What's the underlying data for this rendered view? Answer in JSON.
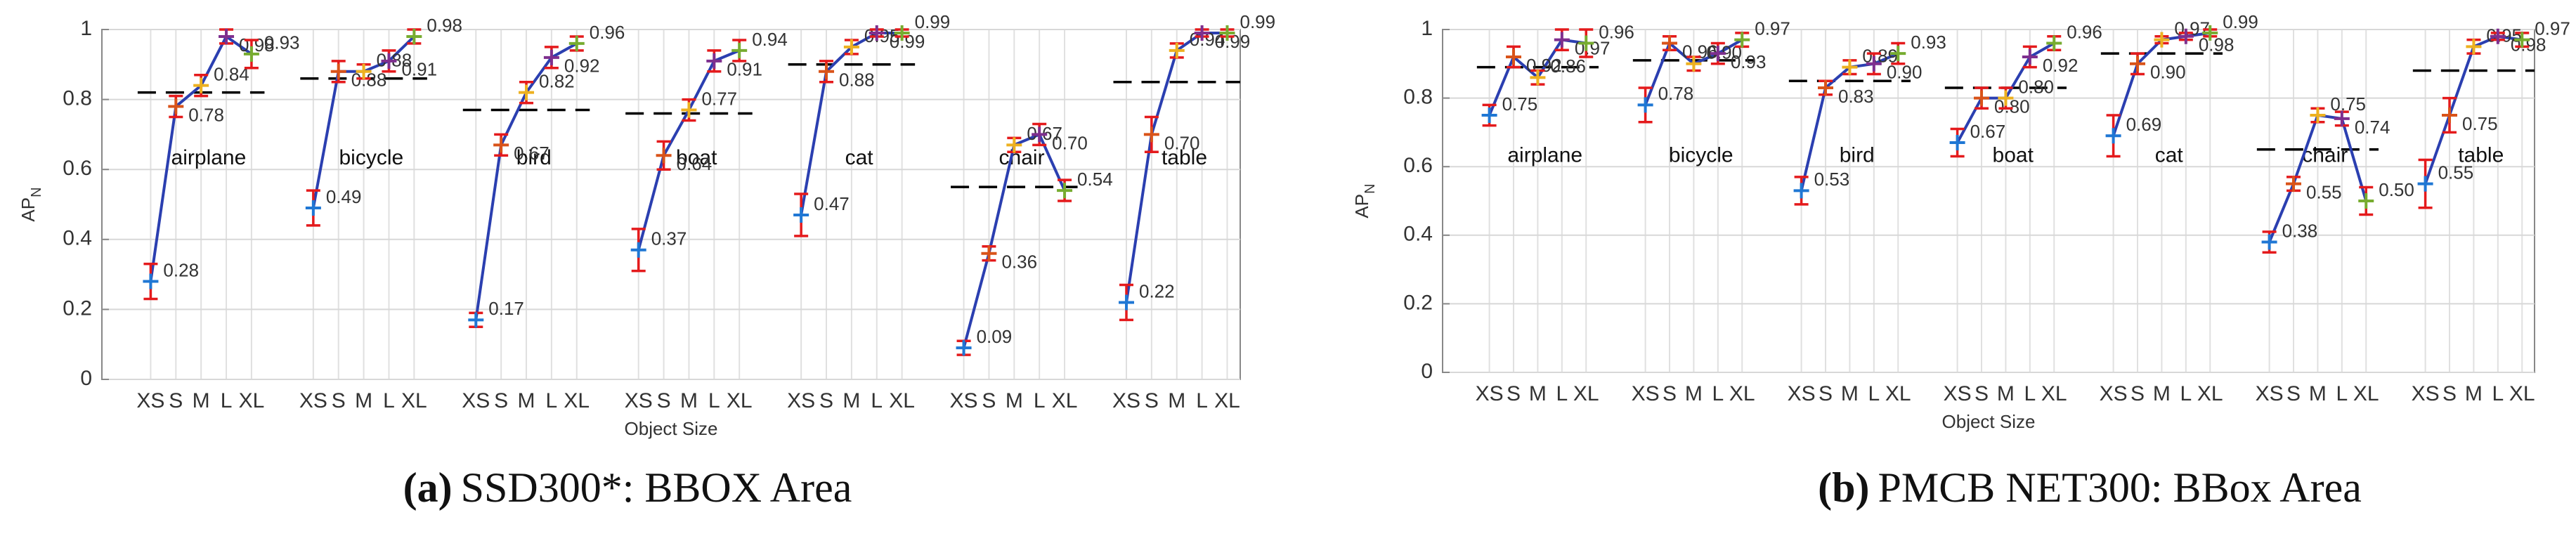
{
  "chart_data": [
    {
      "type": "line",
      "label": "(a)",
      "caption": "SSD300*: BBOX Area",
      "x_label": "Object Size",
      "y_label": "AP",
      "y_label_subscript": "N",
      "sizes": [
        "XS",
        "S",
        "M",
        "L",
        "XL"
      ],
      "ylim": [
        0,
        1
      ],
      "yticks": [
        0,
        0.2,
        0.4,
        0.6,
        0.8,
        1
      ],
      "grid": true,
      "line_color": "#2b3fb0",
      "error_color": "#e41a1c",
      "overall_color": "#000000",
      "marker_colors": [
        "#1f77d4",
        "#d95319",
        "#edb120",
        "#7e2f8e",
        "#77ac30"
      ],
      "series": [
        {
          "name": "airplane",
          "values": [
            0.28,
            0.78,
            0.84,
            0.98,
            0.93
          ],
          "value_labels": [
            "0.28",
            "0.78",
            "0.84",
            "0.98",
            "0.93"
          ],
          "errors": [
            0.05,
            0.03,
            0.03,
            0.02,
            0.04
          ],
          "overall": 0.82
        },
        {
          "name": "bicycle",
          "values": [
            0.49,
            0.88,
            0.88,
            0.91,
            0.98
          ],
          "value_labels": [
            "0.49",
            "0.88",
            "0.88",
            "0.91",
            "0.98"
          ],
          "errors": [
            0.05,
            0.03,
            0.02,
            0.03,
            0.02
          ],
          "overall": 0.86
        },
        {
          "name": "bird",
          "values": [
            0.17,
            0.67,
            0.82,
            0.92,
            0.96
          ],
          "value_labels": [
            "0.17",
            "0.67",
            "0.82",
            "0.92",
            "0.96"
          ],
          "errors": [
            0.02,
            0.03,
            0.03,
            0.03,
            0.02
          ],
          "overall": 0.77
        },
        {
          "name": "boat",
          "values": [
            0.37,
            0.64,
            0.77,
            0.91,
            0.94
          ],
          "value_labels": [
            "0.37",
            "0.64",
            "0.77",
            "0.91",
            "0.94"
          ],
          "errors": [
            0.06,
            0.04,
            0.03,
            0.03,
            0.03
          ],
          "overall": 0.76
        },
        {
          "name": "cat",
          "values": [
            0.47,
            0.88,
            0.95,
            0.99,
            0.99
          ],
          "value_labels": [
            "0.47",
            "0.88",
            "0.95",
            "0.99",
            "0.99"
          ],
          "errors": [
            0.06,
            0.03,
            0.02,
            0.01,
            0.01
          ],
          "overall": 0.9
        },
        {
          "name": "chair",
          "values": [
            0.09,
            0.36,
            0.67,
            0.7,
            0.54
          ],
          "value_labels": [
            "0.09",
            "0.36",
            "0.67",
            "0.70",
            "0.54"
          ],
          "errors": [
            0.02,
            0.02,
            0.02,
            0.03,
            0.03
          ],
          "overall": 0.55
        },
        {
          "name": "table",
          "values": [
            0.22,
            0.7,
            0.94,
            0.99,
            0.99
          ],
          "value_labels": [
            "0.22",
            "0.70",
            "0.94",
            "0.99",
            "0.99"
          ],
          "errors": [
            0.05,
            0.05,
            0.02,
            0.01,
            0.01
          ],
          "overall": 0.85
        }
      ]
    },
    {
      "type": "line",
      "label": "(b)",
      "caption": "PMCB NET300: BBox Area",
      "x_label": "Object Size",
      "y_label": "AP",
      "y_label_subscript": "N",
      "sizes": [
        "XS",
        "S",
        "M",
        "L",
        "XL"
      ],
      "ylim": [
        0,
        1
      ],
      "yticks": [
        0,
        0.2,
        0.4,
        0.6,
        0.8,
        1
      ],
      "grid": true,
      "line_color": "#2b3fb0",
      "error_color": "#e41a1c",
      "overall_color": "#000000",
      "marker_colors": [
        "#1f77d4",
        "#d95319",
        "#edb120",
        "#7e2f8e",
        "#77ac30"
      ],
      "series": [
        {
          "name": "airplane",
          "values": [
            0.75,
            0.92,
            0.86,
            0.97,
            0.96
          ],
          "value_labels": [
            "0.75",
            "0.92",
            "0.86",
            "0.97",
            "0.96"
          ],
          "errors": [
            0.03,
            0.03,
            0.02,
            0.03,
            0.04
          ],
          "overall": 0.89
        },
        {
          "name": "bicycle",
          "values": [
            0.78,
            0.96,
            0.9,
            0.93,
            0.97
          ],
          "value_labels": [
            "0.78",
            "0.96",
            "0.90",
            "0.93",
            "0.97"
          ],
          "errors": [
            0.05,
            0.02,
            0.02,
            0.03,
            0.02
          ],
          "overall": 0.91
        },
        {
          "name": "bird",
          "values": [
            0.53,
            0.83,
            0.89,
            0.9,
            0.93
          ],
          "value_labels": [
            "0.53",
            "0.83",
            "0.89",
            "0.90",
            "0.93"
          ],
          "errors": [
            0.04,
            0.02,
            0.02,
            0.03,
            0.03
          ],
          "overall": 0.85
        },
        {
          "name": "boat",
          "values": [
            0.67,
            0.8,
            0.8,
            0.92,
            0.96
          ],
          "value_labels": [
            "0.67",
            "0.80",
            "0.80",
            "0.92",
            "0.96"
          ],
          "errors": [
            0.04,
            0.03,
            0.03,
            0.03,
            0.02
          ],
          "overall": 0.83
        },
        {
          "name": "cat",
          "values": [
            0.69,
            0.9,
            0.97,
            0.98,
            0.99
          ],
          "value_labels": [
            "0.69",
            "0.90",
            "0.97",
            "0.98",
            "0.99"
          ],
          "errors": [
            0.06,
            0.03,
            0.01,
            0.01,
            0.01
          ],
          "overall": 0.93
        },
        {
          "name": "chair",
          "values": [
            0.38,
            0.55,
            0.75,
            0.74,
            0.5
          ],
          "value_labels": [
            "0.38",
            "0.55",
            "0.75",
            "0.74",
            "0.50"
          ],
          "errors": [
            0.03,
            0.02,
            0.02,
            0.02,
            0.04
          ],
          "overall": 0.65
        },
        {
          "name": "table",
          "values": [
            0.55,
            0.75,
            0.95,
            0.98,
            0.97
          ],
          "value_labels": [
            "0.55",
            "0.75",
            "0.95",
            "0.98",
            "0.97"
          ],
          "errors": [
            0.07,
            0.05,
            0.02,
            0.01,
            0.02
          ],
          "overall": 0.88
        }
      ]
    }
  ]
}
